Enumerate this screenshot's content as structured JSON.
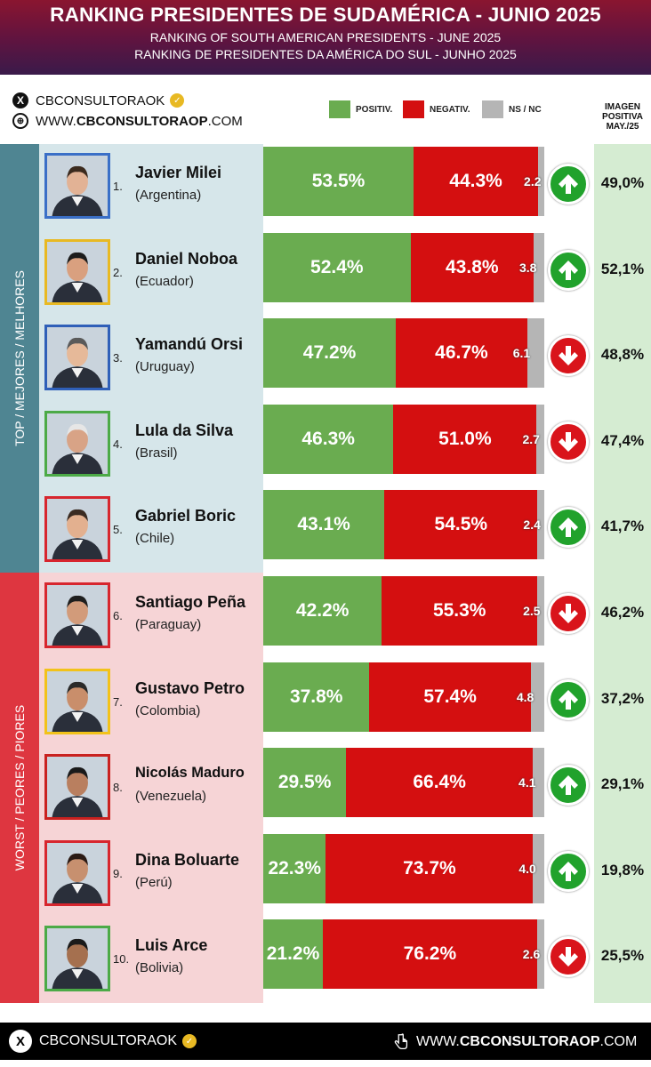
{
  "header": {
    "title": "RANKING PRESIDENTES DE SUDAMÉRICA - JUNIO 2025",
    "subtitle_en": "RANKING OF SOUTH AMERICAN PRESIDENTS -  JUNE 2025",
    "subtitle_pt": "RANKING DE PRESIDENTES DA AMÉRICA DO SUL - JUNHO 2025"
  },
  "social": {
    "handle": "CBCONSULTORAOK",
    "website_prefix": "WWW.",
    "website_bold": "CBCONSULTORAOP",
    "website_suffix": ".COM"
  },
  "legend": {
    "positive": "POSITIV.",
    "negative": "NEGATIV.",
    "ns": "NS / NC",
    "positive_color": "#6aac50",
    "negative_color": "#d40f10",
    "ns_color": "#b5b5b5"
  },
  "image_header": {
    "l1": "IMAGEN",
    "l2": "POSITIVA",
    "l3": "MAY./25"
  },
  "groups": {
    "top": "TOP / MEJORES / MELHORES",
    "worst": "WORST / PEORES / PIORES"
  },
  "chart_data": {
    "type": "bar",
    "stacked": true,
    "orientation": "horizontal",
    "title": "RANKING PRESIDENTES DE SUDAMÉRICA - JUNIO 2025",
    "series_names": [
      "POSITIV.",
      "NEGATIV.",
      "NS / NC"
    ],
    "rows": [
      {
        "rank": "1.",
        "name": "Javier Milei",
        "country": "(Argentina)",
        "pos": 53.5,
        "neg": 44.3,
        "ns": 2.2,
        "pos_label": "53.5%",
        "neg_label": "44.3%",
        "ns_label": "2.2",
        "trend": "up",
        "prev": "49,0%",
        "frame": "#3a6fc7",
        "group": "top"
      },
      {
        "rank": "2.",
        "name": "Daniel Noboa",
        "country": "(Ecuador)",
        "pos": 52.4,
        "neg": 43.8,
        "ns": 3.8,
        "pos_label": "52.4%",
        "neg_label": "43.8%",
        "ns_label": "3.8",
        "trend": "up",
        "prev": "52,1%",
        "frame": "#e8b923",
        "group": "top"
      },
      {
        "rank": "3.",
        "name": "Yamandú Orsi",
        "country": "(Uruguay)",
        "pos": 47.2,
        "neg": 46.7,
        "ns": 6.1,
        "pos_label": "47.2%",
        "neg_label": "46.7%",
        "ns_label": "6.1",
        "trend": "down",
        "prev": "48,8%",
        "frame": "#2f5fb8",
        "group": "top"
      },
      {
        "rank": "4.",
        "name": "Lula da Silva",
        "country": "(Brasil)",
        "pos": 46.3,
        "neg": 51.0,
        "ns": 2.7,
        "pos_label": "46.3%",
        "neg_label": "51.0%",
        "ns_label": "2.7",
        "trend": "down",
        "prev": "47,4%",
        "frame": "#4caa47",
        "group": "top"
      },
      {
        "rank": "5.",
        "name": "Gabriel Boric",
        "country": "(Chile)",
        "pos": 43.1,
        "neg": 54.5,
        "ns": 2.4,
        "pos_label": "43.1%",
        "neg_label": "54.5%",
        "ns_label": "2.4",
        "trend": "up",
        "prev": "41,7%",
        "frame": "#d7262e",
        "group": "top"
      },
      {
        "rank": "6.",
        "name": "Santiago Peña",
        "country": "(Paraguay)",
        "pos": 42.2,
        "neg": 55.3,
        "ns": 2.5,
        "pos_label": "42.2%",
        "neg_label": "55.3%",
        "ns_label": "2.5",
        "trend": "down",
        "prev": "46,2%",
        "frame": "#d7262e",
        "group": "worst"
      },
      {
        "rank": "7.",
        "name": "Gustavo Petro",
        "country": "(Colombia)",
        "pos": 37.8,
        "neg": 57.4,
        "ns": 4.8,
        "pos_label": "37.8%",
        "neg_label": "57.4%",
        "ns_label": "4.8",
        "trend": "up",
        "prev": "37,2%",
        "frame": "#f2c21a",
        "group": "worst"
      },
      {
        "rank": "8.",
        "name": "Nicolás Maduro",
        "country": "(Venezuela)",
        "pos": 29.5,
        "neg": 66.4,
        "ns": 4.1,
        "pos_label": "29.5%",
        "neg_label": "66.4%",
        "ns_label": "4.1",
        "trend": "up",
        "prev": "29,1%",
        "frame": "#c9211f",
        "group": "worst"
      },
      {
        "rank": "9.",
        "name": "Dina Boluarte",
        "country": "(Perú)",
        "pos": 22.3,
        "neg": 73.7,
        "ns": 4.0,
        "pos_label": "22.3%",
        "neg_label": "73.7%",
        "ns_label": "4.0",
        "trend": "up",
        "prev": "19,8%",
        "frame": "#d7262e",
        "group": "worst"
      },
      {
        "rank": "10.",
        "name": "Luis Arce",
        "country": "(Bolivia)",
        "pos": 21.2,
        "neg": 76.2,
        "ns": 2.6,
        "pos_label": "21.2%",
        "neg_label": "76.2%",
        "ns_label": "2.6",
        "trend": "down",
        "prev": "25,5%",
        "frame": "#4caa47",
        "group": "worst"
      }
    ]
  },
  "footer": {
    "handle": "CBCONSULTORAOK",
    "website_prefix": "WWW.",
    "website_bold": "CBCONSULTORAOP",
    "website_suffix": ".COM"
  }
}
